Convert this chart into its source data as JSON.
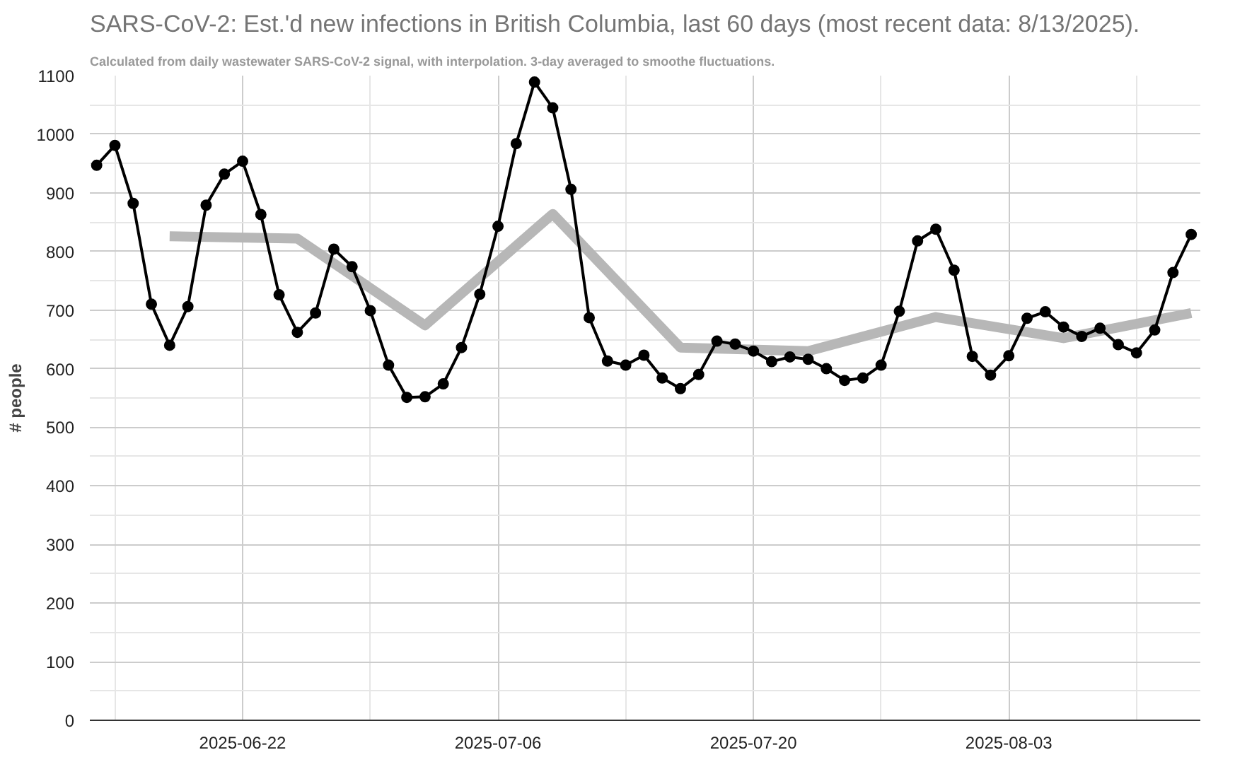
{
  "chart_data": {
    "type": "line",
    "title": "SARS-CoV-2: Est.'d new infections in British Columbia, last 60 days (most recent data: 8/13/2025).",
    "subtitle": "Calculated from daily wastewater SARS-CoV-2 signal, with interpolation. 3-day averaged to smoothe fluctuations.",
    "ylabel": "# people",
    "x": [
      "2025-06-14",
      "2025-06-15",
      "2025-06-16",
      "2025-06-17",
      "2025-06-18",
      "2025-06-19",
      "2025-06-20",
      "2025-06-21",
      "2025-06-22",
      "2025-06-23",
      "2025-06-24",
      "2025-06-25",
      "2025-06-26",
      "2025-06-27",
      "2025-06-28",
      "2025-06-29",
      "2025-06-30",
      "2025-07-01",
      "2025-07-02",
      "2025-07-03",
      "2025-07-04",
      "2025-07-05",
      "2025-07-06",
      "2025-07-07",
      "2025-07-08",
      "2025-07-09",
      "2025-07-10",
      "2025-07-11",
      "2025-07-12",
      "2025-07-13",
      "2025-07-14",
      "2025-07-15",
      "2025-07-16",
      "2025-07-17",
      "2025-07-18",
      "2025-07-19",
      "2025-07-20",
      "2025-07-21",
      "2025-07-22",
      "2025-07-23",
      "2025-07-24",
      "2025-07-25",
      "2025-07-26",
      "2025-07-27",
      "2025-07-28",
      "2025-07-29",
      "2025-07-30",
      "2025-07-31",
      "2025-08-01",
      "2025-08-02",
      "2025-08-03",
      "2025-08-04",
      "2025-08-05",
      "2025-08-06",
      "2025-08-07",
      "2025-08-08",
      "2025-08-09",
      "2025-08-10",
      "2025-08-11",
      "2025-08-12",
      "2025-08-13"
    ],
    "series": [
      {
        "color": "#b7b7b7",
        "marker": "none",
        "x": [
          "2025-06-18",
          "2025-06-25",
          "2025-07-02",
          "2025-07-09",
          "2025-07-16",
          "2025-07-23",
          "2025-07-30",
          "2025-08-06",
          "2025-08-13"
        ],
        "values": [
          826,
          822,
          674,
          864,
          636,
          630,
          688,
          652,
          695
        ]
      },
      {
        "color": "#000000",
        "marker": "circle",
        "values": [
          947,
          981,
          882,
          710,
          640,
          706,
          879,
          932,
          954,
          863,
          726,
          662,
          695,
          804,
          774,
          699,
          606,
          551,
          552,
          574,
          636,
          727,
          843,
          984,
          1089,
          1045,
          906,
          687,
          613,
          606,
          623,
          584,
          566,
          590,
          647,
          642,
          630,
          612,
          620,
          616,
          600,
          580,
          584,
          606,
          698,
          818,
          838,
          768,
          621,
          589,
          622,
          686,
          697,
          671,
          655,
          669,
          641,
          627,
          666,
          764,
          829
        ]
      }
    ],
    "xlim": [
      "2025-06-13T15:00",
      "2025-08-13T12:00"
    ],
    "xticks": [
      "2025-06-22",
      "2025-07-06",
      "2025-07-20",
      "2025-08-03"
    ],
    "ylim": [
      0,
      1100
    ],
    "yticks": [
      0,
      100,
      200,
      300,
      400,
      500,
      600,
      700,
      800,
      900,
      1000,
      1100
    ],
    "grid": true,
    "line_style": "solid"
  }
}
